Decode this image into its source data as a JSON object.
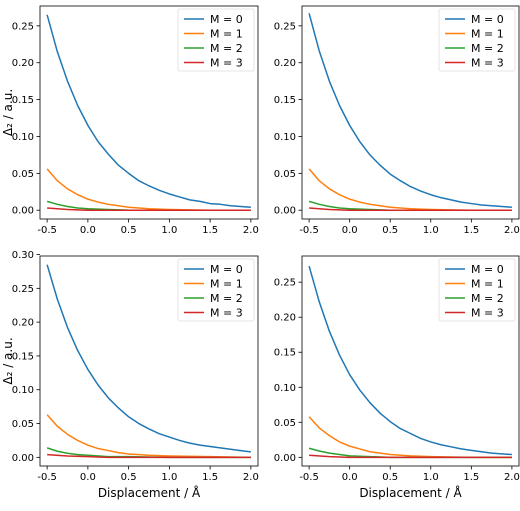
{
  "chart_data": [
    {
      "type": "line",
      "xlim": [
        -0.5,
        2.0
      ],
      "ylim": [
        0,
        0.265
      ],
      "xticks": [
        -0.5,
        0.0,
        0.5,
        1.0,
        1.5,
        2.0
      ],
      "yticks": [
        0.0,
        0.05,
        0.1,
        0.15,
        0.2,
        0.25
      ],
      "ytick_labels": [
        "0.00",
        "0.05",
        "0.10",
        "0.15",
        "0.20",
        "0.25"
      ],
      "xlabel": "",
      "ylabel": "Δ₂ / a.u.",
      "legend_position": "top-right",
      "series": [
        {
          "name": "M = 0",
          "color": "#1f77b4",
          "x": [
            -0.5,
            -0.375,
            -0.25,
            -0.125,
            0.0,
            0.125,
            0.25,
            0.375,
            0.5,
            0.625,
            0.75,
            0.875,
            1.0,
            1.125,
            1.25,
            1.375,
            1.5,
            1.625,
            1.75,
            1.875,
            2.0
          ],
          "y": [
            0.265,
            0.215,
            0.175,
            0.142,
            0.115,
            0.093,
            0.076,
            0.061,
            0.05,
            0.04,
            0.033,
            0.027,
            0.022,
            0.018,
            0.014,
            0.012,
            0.009,
            0.008,
            0.006,
            0.005,
            0.004
          ]
        },
        {
          "name": "M = 1",
          "color": "#ff7f0e",
          "x": [
            -0.5,
            -0.375,
            -0.25,
            -0.125,
            0.0,
            0.125,
            0.25,
            0.375,
            0.5,
            0.75,
            1.0,
            1.5,
            2.0
          ],
          "y": [
            0.056,
            0.04,
            0.029,
            0.021,
            0.015,
            0.011,
            0.008,
            0.006,
            0.004,
            0.002,
            0.001,
            0.0,
            0.0
          ]
        },
        {
          "name": "M = 2",
          "color": "#2ca02c",
          "x": [
            -0.5,
            -0.375,
            -0.25,
            -0.125,
            0.0,
            0.25,
            0.5,
            1.0,
            1.5,
            2.0
          ],
          "y": [
            0.012,
            0.008,
            0.005,
            0.003,
            0.002,
            0.001,
            0.0,
            0.0,
            0.0,
            0.0
          ]
        },
        {
          "name": "M = 3",
          "color": "#d62728",
          "x": [
            -0.5,
            -0.25,
            0.0,
            0.25,
            0.5,
            1.0,
            2.0
          ],
          "y": [
            0.003,
            0.001,
            0.0,
            0.0,
            0.0,
            0.0,
            0.0
          ]
        }
      ]
    },
    {
      "type": "line",
      "xlim": [
        -0.5,
        2.0
      ],
      "ylim": [
        0,
        0.265
      ],
      "xticks": [
        -0.5,
        0.0,
        0.5,
        1.0,
        1.5,
        2.0
      ],
      "yticks": [
        0.0,
        0.05,
        0.1,
        0.15,
        0.2,
        0.25
      ],
      "ytick_labels": [
        "0.00",
        "0.05",
        "0.10",
        "0.15",
        "0.20",
        "0.25"
      ],
      "xlabel": "",
      "ylabel": "",
      "legend_position": "top-right",
      "series": [
        {
          "name": "M = 0",
          "color": "#1f77b4",
          "x": [
            -0.5,
            -0.375,
            -0.25,
            -0.125,
            0.0,
            0.125,
            0.25,
            0.375,
            0.5,
            0.625,
            0.75,
            0.875,
            1.0,
            1.125,
            1.25,
            1.375,
            1.5,
            1.625,
            1.75,
            1.875,
            2.0
          ],
          "y": [
            0.267,
            0.216,
            0.175,
            0.142,
            0.115,
            0.093,
            0.075,
            0.061,
            0.049,
            0.04,
            0.032,
            0.026,
            0.021,
            0.017,
            0.014,
            0.011,
            0.009,
            0.007,
            0.006,
            0.005,
            0.004
          ]
        },
        {
          "name": "M = 1",
          "color": "#ff7f0e",
          "x": [
            -0.5,
            -0.375,
            -0.25,
            -0.125,
            0.0,
            0.125,
            0.25,
            0.375,
            0.5,
            0.75,
            1.0,
            1.5,
            2.0
          ],
          "y": [
            0.056,
            0.04,
            0.029,
            0.021,
            0.015,
            0.011,
            0.008,
            0.006,
            0.004,
            0.002,
            0.001,
            0.0,
            0.0
          ]
        },
        {
          "name": "M = 2",
          "color": "#2ca02c",
          "x": [
            -0.5,
            -0.375,
            -0.25,
            -0.125,
            0.0,
            0.25,
            0.5,
            1.0,
            1.5,
            2.0
          ],
          "y": [
            0.012,
            0.008,
            0.005,
            0.003,
            0.002,
            0.001,
            0.0,
            0.0,
            0.0,
            0.0
          ]
        },
        {
          "name": "M = 3",
          "color": "#d62728",
          "x": [
            -0.5,
            -0.25,
            0.0,
            0.25,
            0.5,
            1.0,
            2.0
          ],
          "y": [
            0.003,
            0.001,
            0.0,
            0.0,
            0.0,
            0.0,
            0.0
          ]
        }
      ]
    },
    {
      "type": "line",
      "xlim": [
        -0.5,
        2.0
      ],
      "ylim": [
        0,
        0.285
      ],
      "xticks": [
        -0.5,
        0.0,
        0.5,
        1.0,
        1.5,
        2.0
      ],
      "yticks": [
        0.0,
        0.05,
        0.1,
        0.15,
        0.2,
        0.25,
        0.3
      ],
      "ytick_labels": [
        "0.00",
        "0.05",
        "0.10",
        "0.15",
        "0.20",
        "0.25",
        "0.30"
      ],
      "xlabel": "Displacement / Å",
      "ylabel": "Δ₂ / a.u.",
      "legend_position": "top-right",
      "series": [
        {
          "name": "M = 0",
          "color": "#1f77b4",
          "x": [
            -0.5,
            -0.375,
            -0.25,
            -0.125,
            0.0,
            0.125,
            0.25,
            0.375,
            0.5,
            0.625,
            0.75,
            0.875,
            1.0,
            1.125,
            1.25,
            1.375,
            1.5,
            1.625,
            1.75,
            1.875,
            2.0
          ],
          "y": [
            0.285,
            0.234,
            0.192,
            0.158,
            0.13,
            0.107,
            0.088,
            0.073,
            0.06,
            0.05,
            0.042,
            0.035,
            0.03,
            0.025,
            0.021,
            0.018,
            0.016,
            0.014,
            0.012,
            0.01,
            0.008
          ]
        },
        {
          "name": "M = 1",
          "color": "#ff7f0e",
          "x": [
            -0.5,
            -0.375,
            -0.25,
            -0.125,
            0.0,
            0.125,
            0.25,
            0.375,
            0.5,
            0.75,
            1.0,
            1.5,
            2.0
          ],
          "y": [
            0.063,
            0.046,
            0.034,
            0.025,
            0.018,
            0.013,
            0.01,
            0.007,
            0.005,
            0.003,
            0.002,
            0.001,
            0.0
          ]
        },
        {
          "name": "M = 2",
          "color": "#2ca02c",
          "x": [
            -0.5,
            -0.375,
            -0.25,
            -0.125,
            0.0,
            0.25,
            0.5,
            1.0,
            1.5,
            2.0
          ],
          "y": [
            0.014,
            0.009,
            0.006,
            0.004,
            0.003,
            0.001,
            0.001,
            0.0,
            0.0,
            0.0
          ]
        },
        {
          "name": "M = 3",
          "color": "#d62728",
          "x": [
            -0.5,
            -0.25,
            0.0,
            0.25,
            0.5,
            1.0,
            2.0
          ],
          "y": [
            0.004,
            0.002,
            0.001,
            0.0,
            0.0,
            0.0,
            0.0
          ]
        }
      ]
    },
    {
      "type": "line",
      "xlim": [
        -0.5,
        2.0
      ],
      "ylim": [
        0,
        0.275
      ],
      "xticks": [
        -0.5,
        0.0,
        0.5,
        1.0,
        1.5,
        2.0
      ],
      "yticks": [
        0.0,
        0.05,
        0.1,
        0.15,
        0.2,
        0.25
      ],
      "ytick_labels": [
        "0.00",
        "0.05",
        "0.10",
        "0.15",
        "0.20",
        "0.25"
      ],
      "xlabel": "Displacement / Å",
      "ylabel": "",
      "legend_position": "top-right",
      "series": [
        {
          "name": "M = 0",
          "color": "#1f77b4",
          "x": [
            -0.5,
            -0.375,
            -0.25,
            -0.125,
            0.0,
            0.125,
            0.25,
            0.375,
            0.5,
            0.625,
            0.75,
            0.875,
            1.0,
            1.125,
            1.25,
            1.375,
            1.5,
            1.625,
            1.75,
            1.875,
            2.0
          ],
          "y": [
            0.273,
            0.222,
            0.18,
            0.146,
            0.118,
            0.096,
            0.078,
            0.063,
            0.051,
            0.041,
            0.034,
            0.027,
            0.022,
            0.018,
            0.015,
            0.012,
            0.01,
            0.008,
            0.006,
            0.005,
            0.004
          ]
        },
        {
          "name": "M = 1",
          "color": "#ff7f0e",
          "x": [
            -0.5,
            -0.375,
            -0.25,
            -0.125,
            0.0,
            0.125,
            0.25,
            0.375,
            0.5,
            0.75,
            1.0,
            1.5,
            2.0
          ],
          "y": [
            0.058,
            0.042,
            0.031,
            0.022,
            0.016,
            0.012,
            0.008,
            0.006,
            0.004,
            0.002,
            0.001,
            0.0,
            0.0
          ]
        },
        {
          "name": "M = 2",
          "color": "#2ca02c",
          "x": [
            -0.5,
            -0.375,
            -0.25,
            -0.125,
            0.0,
            0.25,
            0.5,
            1.0,
            1.5,
            2.0
          ],
          "y": [
            0.013,
            0.009,
            0.006,
            0.004,
            0.002,
            0.001,
            0.0,
            0.0,
            0.0,
            0.0
          ]
        },
        {
          "name": "M = 3",
          "color": "#d62728",
          "x": [
            -0.5,
            -0.25,
            0.0,
            0.25,
            0.5,
            1.0,
            2.0
          ],
          "y": [
            0.003,
            0.001,
            0.0,
            0.0,
            0.0,
            0.0,
            0.0
          ]
        }
      ]
    }
  ]
}
